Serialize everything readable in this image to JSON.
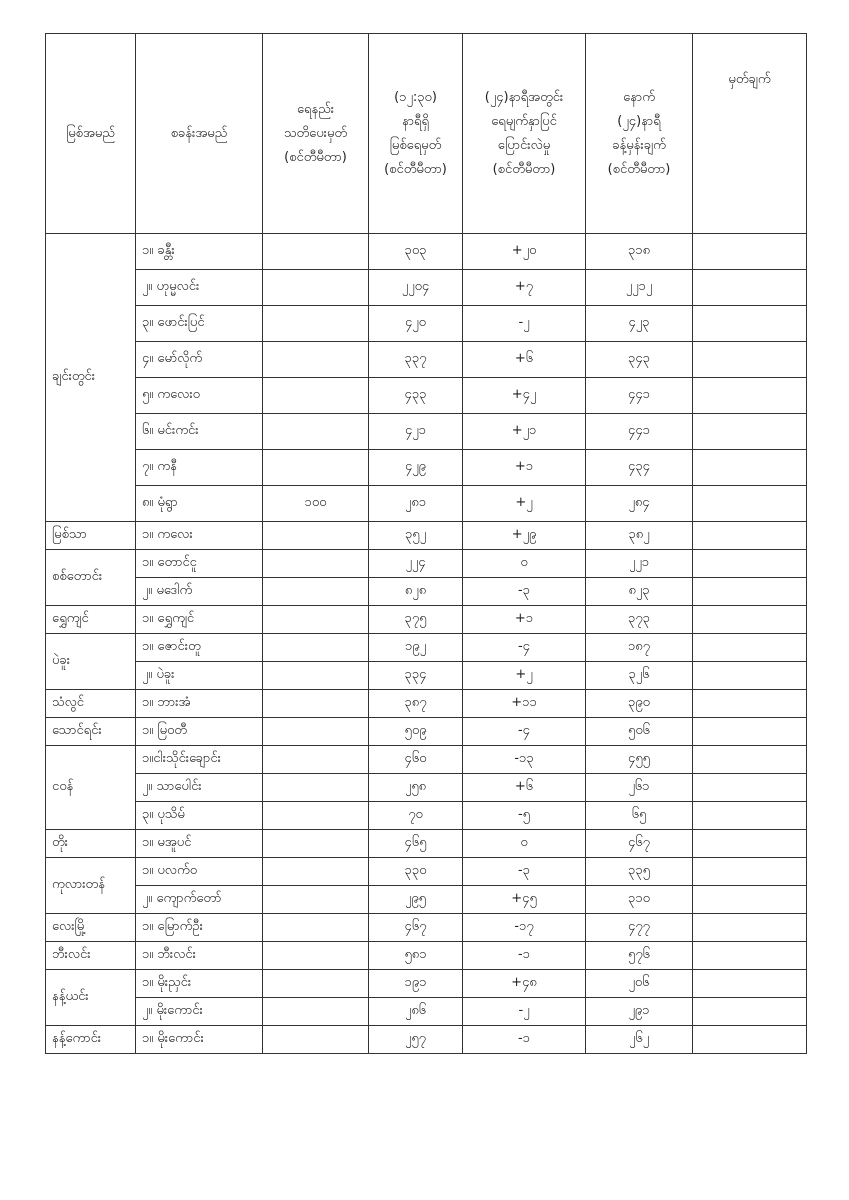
{
  "headers": [
    "မြစ်အမည်",
    "စခန်းအမည်",
    "ရေနည်း\nသတိပေးမှတ်\n(စင်တီမီတာ)",
    "(၁၂:၃၀)\nနာရီရှိ\nမြစ်ရေမှတ်\n(စင်တီမီတာ)",
    "(၂၄)နာရီအတွင်း\nရေမျက်နှာပြင်\nပြောင်းလဲမှု\n(စင်တီမီတာ)",
    "နောက်\n(၂၄)နာရီ\nခန့်မှန်းချက်\n(စင်တီမီတာ)",
    "မှတ်ချက်"
  ],
  "rivers": [
    {
      "name": "ချင်းတွင်း",
      "stations": [
        {
          "station": "၁။ ခန္တီး",
          "warning": "",
          "level": "၃၀၃",
          "change": "+၂၀",
          "forecast": "၃၁၈"
        },
        {
          "station": "၂။ ဟုမ္မလင်း",
          "warning": "",
          "level": "၂၂၀၄",
          "change": "+၇",
          "forecast": "၂၂၁၂"
        },
        {
          "station": "၃။ ဖောင်းပြင်",
          "warning": "",
          "level": "၄၂၀",
          "change": "-၂",
          "forecast": "၄၂၃"
        },
        {
          "station": "၄။ မော်လိုက်",
          "warning": "",
          "level": "၃၃၇",
          "change": "+၆",
          "forecast": "၃၄၃"
        },
        {
          "station": "၅။ ကလေးဝ",
          "warning": "",
          "level": "၄၃၃",
          "change": "+၄၂",
          "forecast": "၄၄၁"
        },
        {
          "station": "၆။ မင်းကင်း",
          "warning": "",
          "level": "၄၂၁",
          "change": "+၂၁",
          "forecast": "၄၄၁"
        },
        {
          "station": "၇။ ကနီ",
          "warning": "",
          "level": "၄၂၉",
          "change": "+၁",
          "forecast": "၄၃၄"
        },
        {
          "station": "၈။ မုံရွာ",
          "warning": "၁၀၀",
          "level": "၂၈၁",
          "change": "+၂",
          "forecast": "၂၈၄"
        }
      ]
    },
    {
      "name": "မြစ်သာ",
      "stations": [
        {
          "station": "၁။ ကလေး",
          "warning": "",
          "level": "၃၅၂",
          "change": "+၂၉",
          "forecast": "၃၈၂"
        }
      ]
    },
    {
      "name": "စစ်တောင်း",
      "stations": [
        {
          "station": "၁။ တောင်ငူ",
          "warning": "",
          "level": "၂၂၄",
          "change": "၀",
          "forecast": "၂၂၁"
        },
        {
          "station": "၂။ မဒေါက်",
          "warning": "",
          "level": "၈၂၈",
          "change": "-၃",
          "forecast": "၈၂၃"
        }
      ]
    },
    {
      "name": "ရွှေကျင်",
      "stations": [
        {
          "station": "၁။ ရွှေကျင်",
          "warning": "",
          "level": "၃၇၅",
          "change": "+၁",
          "forecast": "၃၇၃"
        }
      ]
    },
    {
      "name": "ပဲခူး",
      "stations": [
        {
          "station": "၁။ ဇောင်းတူ",
          "warning": "",
          "level": "၁၉၂",
          "change": "-၄",
          "forecast": "၁၈၇"
        },
        {
          "station": "၂။ ပဲခူး",
          "warning": "",
          "level": "၃၃၄",
          "change": "+၂",
          "forecast": "၃၂၆"
        }
      ]
    },
    {
      "name": "သံလွင်",
      "stations": [
        {
          "station": "၁။ ဘားအံ",
          "warning": "",
          "level": "၃၈၇",
          "change": "+၁၁",
          "forecast": "၃၉၀"
        }
      ]
    },
    {
      "name": "သောင်ရင်း",
      "stations": [
        {
          "station": "၁။ မြဝတီ",
          "warning": "",
          "level": "၅၀၉",
          "change": "-၄",
          "forecast": "၅၀၆"
        }
      ]
    },
    {
      "name": "ငဝန်",
      "stations": [
        {
          "station": "၁။ငါးသိုင်းချောင်း",
          "warning": "",
          "level": "၄၆၀",
          "change": "-၁၃",
          "forecast": "၄၅၅"
        },
        {
          "station": "၂။ သာပေါင်း",
          "warning": "",
          "level": "၂၅၈",
          "change": "+၆",
          "forecast": "၂၆၁"
        },
        {
          "station": "၃။ ပုသိမ်",
          "warning": "",
          "level": "၇၀",
          "change": "-၅",
          "forecast": "၆၅"
        }
      ]
    },
    {
      "name": "တိုး",
      "stations": [
        {
          "station": "၁။ မအူပင်",
          "warning": "",
          "level": "၄၆၅",
          "change": "၀",
          "forecast": "၄၆၇"
        }
      ]
    },
    {
      "name": "ကုလားတန်",
      "stations": [
        {
          "station": "၁။ ပလက်ဝ",
          "warning": "",
          "level": "၃၃၀",
          "change": "-၃",
          "forecast": "၃၃၅"
        },
        {
          "station": "၂။ ကျောက်တော်",
          "warning": "",
          "level": "၂၉၅",
          "change": "+၄၅",
          "forecast": "၃၁၀"
        }
      ]
    },
    {
      "name": "လေးမြို့",
      "stations": [
        {
          "station": "၁။ မြောက်ဦး",
          "warning": "",
          "level": "၄၆၇",
          "change": "-၁၇",
          "forecast": "၄၇၇"
        }
      ]
    },
    {
      "name": "ဘီးလင်း",
      "stations": [
        {
          "station": "၁။ ဘီးလင်း",
          "warning": "",
          "level": "၅၈၁",
          "change": "-၁",
          "forecast": "၅၇၆"
        }
      ]
    },
    {
      "name": "နန့်ယင်း",
      "stations": [
        {
          "station": "၁။ မိုးညှင်း",
          "warning": "",
          "level": "၁၉၁",
          "change": "+၄၈",
          "forecast": "၂၀၆"
        },
        {
          "station": "၂။ မိုးကောင်း",
          "warning": "",
          "level": "၂၈၆",
          "change": "-၂",
          "forecast": "၂၉၁"
        }
      ]
    },
    {
      "name": "နန့်ကောင်း",
      "stations": [
        {
          "station": "၁။ မိုးကောင်း",
          "warning": "",
          "level": "၂၅၇",
          "change": "-၁",
          "forecast": "၂၆၂"
        }
      ]
    }
  ]
}
